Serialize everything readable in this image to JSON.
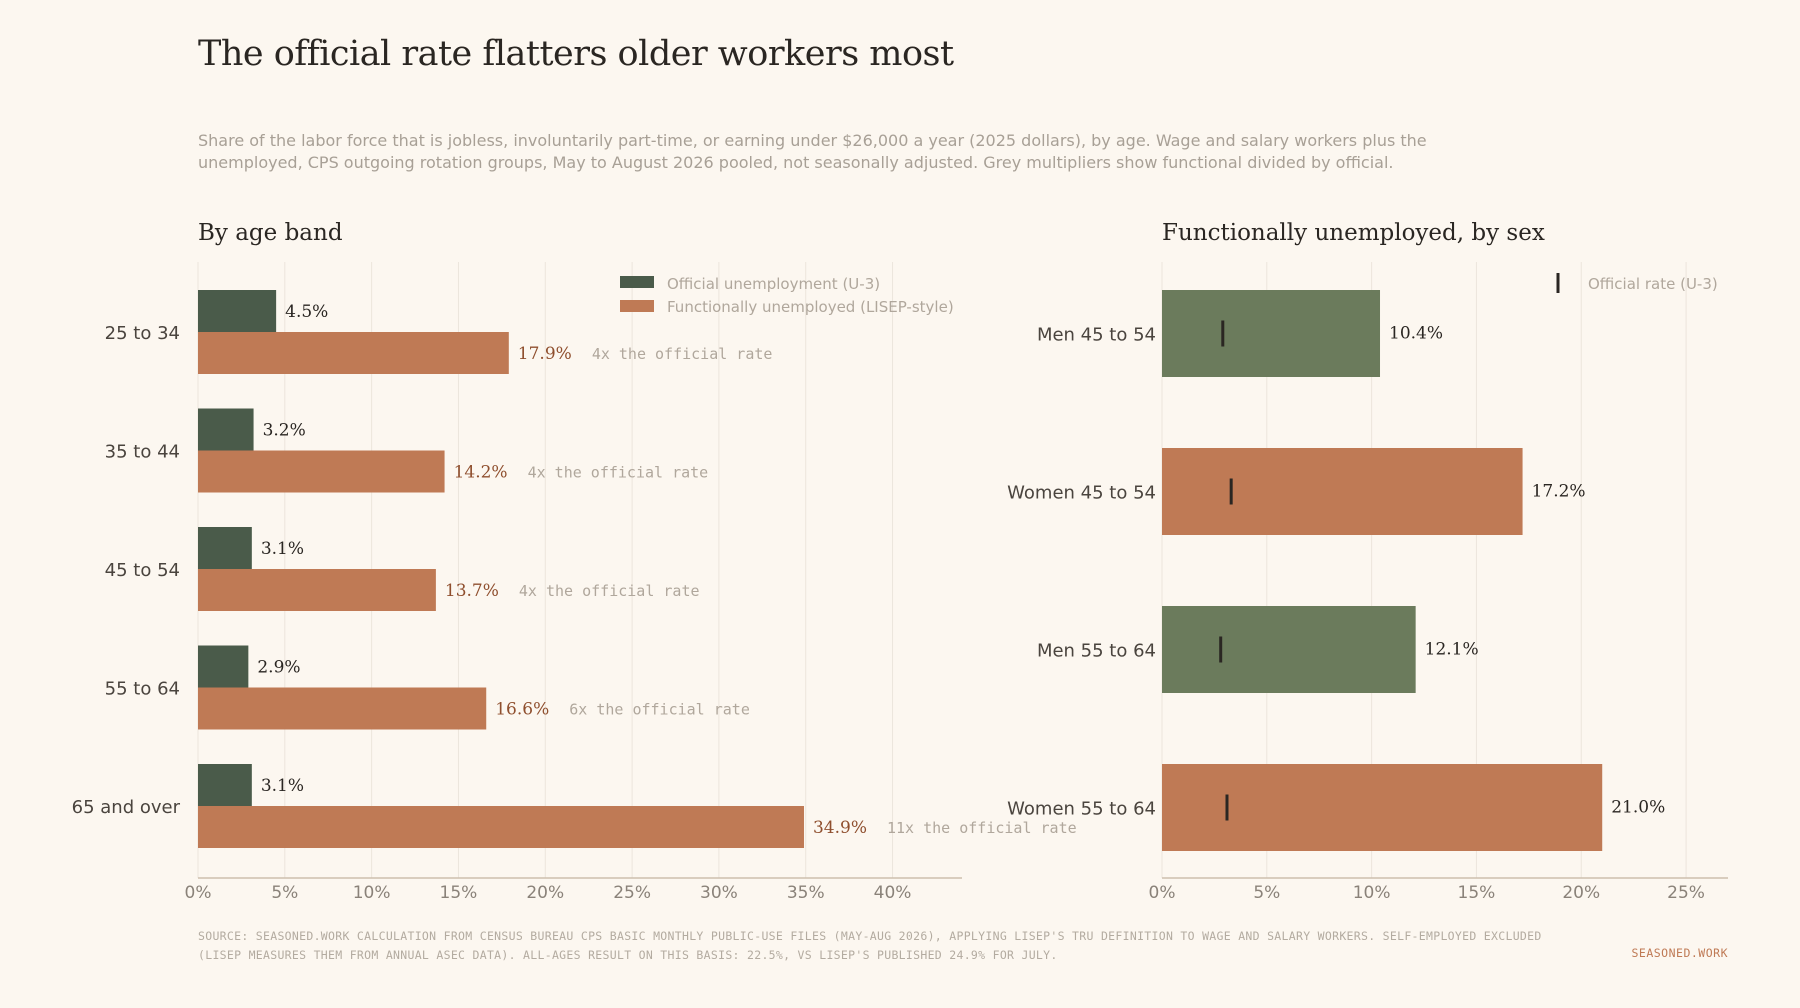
{
  "title": "The official rate flatters older workers most",
  "subtitle": "Share of the labor force that is jobless, involuntarily part-time, or earning under $26,000 a year (2025 dollars), by age. Wage and salary workers plus the unemployed, CPS outgoing rotation groups, May to August 2026 pooled, not seasonally adjusted. Grey multipliers show functional divided by official.",
  "colors": {
    "official": "#4a5b4a",
    "functional": "#bf7a55",
    "men_bar": "#6b7b5c",
    "women_bar": "#bf7a55",
    "marker": "#2a2622",
    "grid": "#ece5dc",
    "axis": "#cdbfae",
    "muted_text": "#b0a79c",
    "value_text": "#2a2622",
    "functional_value_text": "#8f4f2e"
  },
  "chart_data": [
    {
      "type": "bar",
      "orientation": "horizontal",
      "title": "By age band",
      "categories": [
        "25 to 34",
        "35 to 44",
        "45 to 54",
        "55 to 64",
        "65 and over"
      ],
      "series": [
        {
          "name": "Official unemployment (U-3)",
          "values": [
            4.5,
            3.2,
            3.1,
            2.9,
            3.1
          ],
          "labels": [
            "4.5%",
            "3.2%",
            "3.1%",
            "2.9%",
            "3.1%"
          ]
        },
        {
          "name": "Functionally unemployed (LISEP-style)",
          "values": [
            17.9,
            14.2,
            13.7,
            16.6,
            34.9
          ],
          "labels": [
            "17.9%",
            "14.2%",
            "13.7%",
            "16.6%",
            "34.9%"
          ]
        }
      ],
      "multiplier_labels": [
        "4x the official rate",
        "4x the official rate",
        "4x the official rate",
        "6x the official rate",
        "11x the official rate"
      ],
      "xlim": [
        0,
        44
      ],
      "xticks": [
        0,
        5,
        10,
        15,
        20,
        25,
        30,
        35,
        40
      ],
      "xtick_labels": [
        "0%",
        "5%",
        "10%",
        "15%",
        "20%",
        "25%",
        "30%",
        "35%",
        "40%"
      ],
      "grid": true,
      "legend_position": "top-right"
    },
    {
      "type": "bar",
      "orientation": "horizontal",
      "title": "Functionally unemployed, by sex",
      "categories": [
        "Men 45 to 54",
        "Women 45 to 54",
        "Men 55 to 64",
        "Women 55 to 64"
      ],
      "values": [
        10.4,
        17.2,
        12.1,
        21.0
      ],
      "value_labels": [
        "10.4%",
        "17.2%",
        "12.1%",
        "21.0%"
      ],
      "sex": [
        "men",
        "women",
        "men",
        "women"
      ],
      "official_rate": [
        2.9,
        3.3,
        2.8,
        3.1
      ],
      "marker_legend": "Official rate (U-3)",
      "xlim": [
        0,
        27
      ],
      "xticks": [
        0,
        5,
        10,
        15,
        20,
        25
      ],
      "xtick_labels": [
        "0%",
        "5%",
        "10%",
        "15%",
        "20%",
        "25%"
      ],
      "grid": true,
      "legend_position": "top-right"
    }
  ],
  "source": "SOURCE: SEASONED.WORK CALCULATION FROM CENSUS BUREAU CPS BASIC MONTHLY PUBLIC-USE FILES (MAY-AUG 2026), APPLYING LISEP'S TRU DEFINITION TO WAGE AND SALARY WORKERS. SELF-EMPLOYED EXCLUDED (LISEP MEASURES THEM FROM ANNUAL ASEC DATA). ALL-AGES RESULT ON THIS BASIS: 22.5%, VS LISEP'S PUBLISHED 24.9% FOR JULY.",
  "brand": "SEASONED.WORK"
}
